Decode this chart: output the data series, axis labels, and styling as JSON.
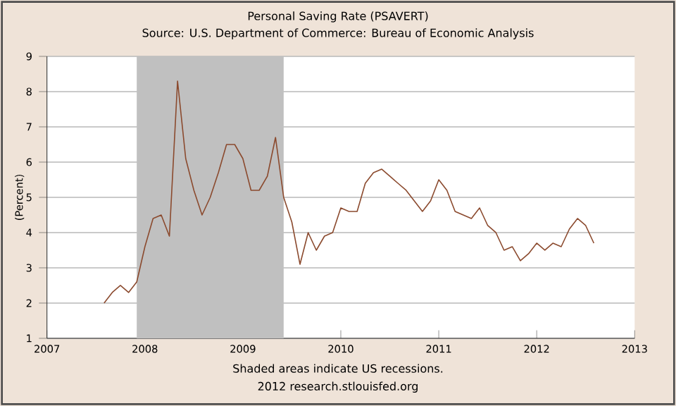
{
  "chart_data": {
    "type": "line",
    "title": "Personal Saving Rate (PSAVERT)",
    "subtitle": "Source: U.S. Department of Commerce: Bureau of Economic Analysis",
    "ylabel": "(Percent)",
    "x": [
      "2007-08",
      "2007-09",
      "2007-10",
      "2007-11",
      "2007-12",
      "2008-01",
      "2008-02",
      "2008-03",
      "2008-04",
      "2008-05",
      "2008-06",
      "2008-07",
      "2008-08",
      "2008-09",
      "2008-10",
      "2008-11",
      "2008-12",
      "2009-01",
      "2009-02",
      "2009-03",
      "2009-04",
      "2009-05",
      "2009-06",
      "2009-07",
      "2009-08",
      "2009-09",
      "2009-10",
      "2009-11",
      "2009-12",
      "2010-01",
      "2010-02",
      "2010-03",
      "2010-04",
      "2010-05",
      "2010-06",
      "2010-07",
      "2010-08",
      "2010-09",
      "2010-10",
      "2010-11",
      "2010-12",
      "2011-01",
      "2011-02",
      "2011-03",
      "2011-04",
      "2011-05",
      "2011-06",
      "2011-07",
      "2011-08",
      "2011-09",
      "2011-10",
      "2011-11",
      "2011-12",
      "2012-01",
      "2012-02",
      "2012-03",
      "2012-04",
      "2012-05",
      "2012-06",
      "2012-07",
      "2012-08"
    ],
    "series": [
      {
        "color": "#8b4a2e",
        "values": [
          2.0,
          2.3,
          2.5,
          2.3,
          2.6,
          3.6,
          4.4,
          4.5,
          3.9,
          8.3,
          6.1,
          5.2,
          4.5,
          5.0,
          5.7,
          6.5,
          6.5,
          6.1,
          5.2,
          5.2,
          5.6,
          6.7,
          5.0,
          4.3,
          3.1,
          4.0,
          3.5,
          3.9,
          4.0,
          4.7,
          4.6,
          4.6,
          5.4,
          5.7,
          5.8,
          5.6,
          5.4,
          5.2,
          4.9,
          4.6,
          4.9,
          5.5,
          5.2,
          4.6,
          4.5,
          4.4,
          4.7,
          4.2,
          4.0,
          3.5,
          3.6,
          3.2,
          3.4,
          3.7,
          3.5,
          3.7,
          3.6,
          4.1,
          4.4,
          4.2,
          3.7
        ]
      }
    ],
    "xlim": [
      "2007",
      "2013"
    ],
    "xticks": [
      "2007",
      "2008",
      "2009",
      "2010",
      "2011",
      "2012",
      "2013"
    ],
    "ylim": [
      1,
      9
    ],
    "yticks": [
      1,
      2,
      3,
      4,
      5,
      6,
      7,
      8,
      9
    ],
    "grid": "y",
    "marker": "none",
    "line_style": "solid",
    "bands": [
      {
        "axis": "x",
        "from": "2007-12",
        "to": "2009-06",
        "color": "#c0c0c0"
      }
    ],
    "annotations": [
      "Shaded areas indicate US recessions.",
      "2012 research.stlouisfed.org"
    ]
  }
}
